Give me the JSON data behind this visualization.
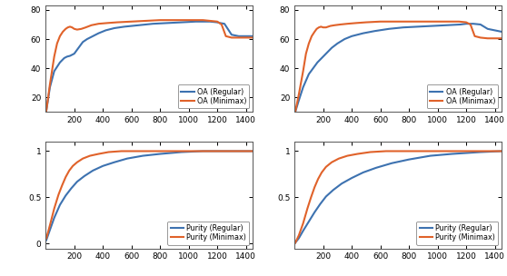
{
  "x_max": 1450,
  "x_ticks": [
    200,
    400,
    600,
    800,
    1000,
    1200,
    1400
  ],
  "colors": {
    "regular": "#3D72B0",
    "minimax": "#E0622A"
  },
  "subplot1": {
    "ylim": [
      10,
      83
    ],
    "yticks": [
      20,
      40,
      60,
      80
    ],
    "legend": [
      "OA (Regular)",
      "OA (Minimax)"
    ],
    "regular": {
      "x": [
        5,
        30,
        60,
        100,
        130,
        150,
        170,
        200,
        230,
        260,
        290,
        330,
        370,
        420,
        480,
        550,
        650,
        750,
        850,
        950,
        1050,
        1150,
        1200,
        1220,
        1250,
        1300,
        1350,
        1400,
        1450
      ],
      "y": [
        11,
        27,
        38,
        44,
        47,
        48,
        48.5,
        50,
        54,
        58,
        60,
        62,
        64,
        66,
        67.5,
        68.5,
        69.5,
        70.5,
        71,
        71.5,
        72,
        72,
        71.5,
        71,
        70.5,
        63,
        62,
        62,
        62
      ]
    },
    "minimax": {
      "x": [
        5,
        30,
        60,
        80,
        100,
        120,
        140,
        155,
        170,
        185,
        200,
        220,
        250,
        280,
        320,
        370,
        430,
        500,
        600,
        700,
        800,
        900,
        1000,
        1100,
        1150,
        1200,
        1230,
        1260,
        1300,
        1350,
        1400,
        1450
      ],
      "y": [
        11,
        29,
        48,
        57,
        62,
        65,
        67,
        68,
        68.5,
        68,
        67,
        66.5,
        67,
        68,
        69.5,
        70.5,
        71,
        71.5,
        72,
        72.5,
        73,
        73,
        73,
        73,
        72.5,
        72,
        70,
        62,
        61,
        61,
        61,
        61
      ]
    }
  },
  "subplot2": {
    "ylim": [
      10,
      83
    ],
    "yticks": [
      20,
      40,
      60,
      80
    ],
    "legend": [
      "OA (Regular)",
      "OA (Minimax)"
    ],
    "regular": {
      "x": [
        5,
        30,
        60,
        100,
        130,
        160,
        190,
        220,
        260,
        300,
        350,
        400,
        480,
        560,
        660,
        760,
        860,
        960,
        1060,
        1160,
        1200,
        1250,
        1300,
        1350,
        1400,
        1450
      ],
      "y": [
        10,
        18,
        27,
        36,
        40,
        44,
        47,
        50,
        54,
        57,
        60,
        62,
        64,
        65.5,
        67,
        68,
        68.5,
        69,
        69.5,
        70,
        70.5,
        70.5,
        70,
        67,
        66,
        65
      ]
    },
    "minimax": {
      "x": [
        5,
        30,
        60,
        80,
        100,
        120,
        140,
        155,
        170,
        185,
        200,
        220,
        250,
        280,
        320,
        370,
        430,
        500,
        600,
        700,
        800,
        900,
        1000,
        1100,
        1150,
        1200,
        1230,
        1260,
        1300,
        1350,
        1400,
        1450
      ],
      "y": [
        10,
        22,
        38,
        50,
        57,
        62,
        65,
        67,
        68,
        68.5,
        68,
        68,
        69,
        69.5,
        70,
        70.5,
        71,
        71.5,
        72,
        72,
        72,
        72,
        72,
        72,
        72,
        71.5,
        70,
        62,
        61,
        60.5,
        60.5,
        60.5
      ]
    }
  },
  "subplot3": {
    "ylim": [
      -0.05,
      1.1
    ],
    "yticks": [
      0,
      0.5,
      1
    ],
    "legend": [
      "Purity (Regular)",
      "Purity (Minimax)"
    ],
    "regular": {
      "x": [
        5,
        30,
        60,
        100,
        140,
        180,
        220,
        270,
        330,
        400,
        480,
        570,
        680,
        800,
        950,
        1100,
        1300,
        1450
      ],
      "y": [
        0.04,
        0.15,
        0.28,
        0.42,
        0.52,
        0.6,
        0.67,
        0.73,
        0.79,
        0.84,
        0.88,
        0.92,
        0.95,
        0.97,
        0.99,
        1.0,
        1.0,
        1.0
      ]
    },
    "minimax": {
      "x": [
        5,
        30,
        60,
        90,
        115,
        140,
        165,
        190,
        220,
        260,
        310,
        370,
        440,
        530,
        640,
        800,
        1000,
        1450
      ],
      "y": [
        0.06,
        0.2,
        0.38,
        0.53,
        0.63,
        0.72,
        0.79,
        0.84,
        0.88,
        0.92,
        0.95,
        0.97,
        0.99,
        1.0,
        1.0,
        1.0,
        1.0,
        1.0
      ]
    }
  },
  "subplot4": {
    "ylim": [
      -0.05,
      1.1
    ],
    "yticks": [
      0.5,
      1
    ],
    "legend": [
      "Purity (Regular)",
      "Purity (Minimax)"
    ],
    "regular": {
      "x": [
        5,
        30,
        60,
        100,
        140,
        180,
        220,
        270,
        330,
        400,
        480,
        570,
        680,
        800,
        950,
        1100,
        1300,
        1450
      ],
      "y": [
        0.01,
        0.06,
        0.14,
        0.24,
        0.34,
        0.43,
        0.51,
        0.58,
        0.65,
        0.71,
        0.77,
        0.82,
        0.87,
        0.91,
        0.95,
        0.97,
        0.99,
        1.0
      ]
    },
    "minimax": {
      "x": [
        5,
        30,
        60,
        90,
        115,
        140,
        165,
        190,
        220,
        260,
        310,
        370,
        440,
        530,
        640,
        800,
        1000,
        1450
      ],
      "y": [
        0.01,
        0.09,
        0.22,
        0.38,
        0.5,
        0.61,
        0.7,
        0.77,
        0.83,
        0.88,
        0.92,
        0.95,
        0.97,
        0.99,
        1.0,
        1.0,
        1.0,
        1.0
      ]
    }
  },
  "line_width": 1.5,
  "bg_color": "#ffffff"
}
